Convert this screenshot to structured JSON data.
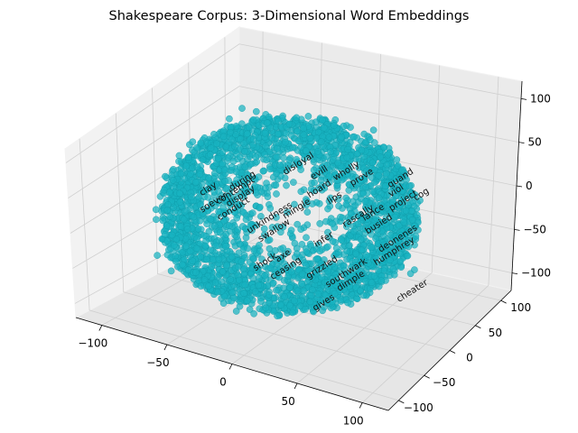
{
  "chart_data": {
    "type": "scatter",
    "title": "Shakespeare Corpus: 3-Dimensional Word Embeddings",
    "xlabel": "",
    "ylabel": "",
    "zlabel": "",
    "x_ticks": [
      "−100",
      "−50",
      "0",
      "50",
      "100"
    ],
    "y_ticks": [
      "−100",
      "−50",
      "0",
      "50",
      "100"
    ],
    "z_ticks": [
      "−100",
      "−50",
      "0",
      "50",
      "100"
    ],
    "xlim": [
      -120,
      120
    ],
    "ylim": [
      -120,
      120
    ],
    "zlim": [
      -120,
      120
    ],
    "grid": true,
    "point_color": "#17b3c1",
    "point_count": 3000,
    "point_shape": "roughly spherical cloud of radius ~100",
    "labeled_words": [
      "disloyal",
      "evill",
      "wholly",
      "clay",
      "soever",
      "during",
      "contempt",
      "conduct",
      "display",
      "unkindness",
      "mingle",
      "swallow",
      "rascally",
      "viol",
      "lance",
      "project",
      "quand",
      "cog",
      "busied",
      "deonenes",
      "humphrey",
      "infer",
      "grizzled",
      "southwark",
      "dimple",
      "axe",
      "ceasing",
      "shock",
      "cheater",
      "gives",
      "hoard",
      "prove",
      "lips"
    ]
  }
}
